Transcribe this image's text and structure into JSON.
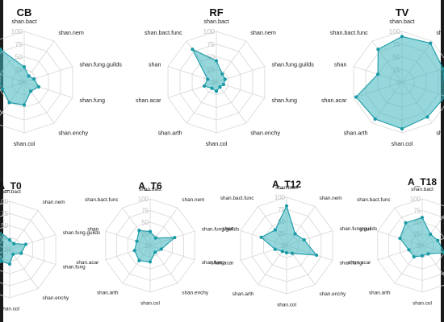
{
  "colors": {
    "fill": "#3fb6c0",
    "stroke": "#1a9aa6",
    "point": "#1a9aa6",
    "grid": "#d6d6d6"
  },
  "chart_data": [
    {
      "type": "radar",
      "title": "CB",
      "axes": [
        "shan.bact",
        "shan.nem",
        "shan.fung.guilds",
        "shan.fung",
        "shan.enchy",
        "shan.col",
        "shan.arth",
        "shan.acar",
        "shan",
        "shan.bact.func"
      ],
      "rlim": [
        0,
        100
      ],
      "ticks": [
        "0",
        "25",
        "50",
        "75",
        "100"
      ],
      "values": [
        30,
        15,
        20,
        30,
        22,
        45,
        50,
        45,
        60,
        80
      ]
    },
    {
      "type": "radar",
      "title": "RF",
      "axes": [
        "shan.bact",
        "shan.nem",
        "shan.fung.guilds",
        "shan.fung",
        "shan.enchy",
        "shan.col",
        "shan.arth",
        "shan.acar",
        "shan",
        "shan.bact.func"
      ],
      "rlim": [
        0,
        100
      ],
      "ticks": [
        "0",
        "25",
        "50",
        "75",
        "100"
      ],
      "values": [
        42,
        20,
        18,
        15,
        12,
        18,
        15,
        25,
        18,
        80
      ]
    },
    {
      "type": "radar",
      "title": "TV",
      "axes": [
        "shan.bact",
        "shan.nem",
        "shan.fung.guilds",
        "shan.fung",
        "shan.enchy",
        "shan.col",
        "shan.arth",
        "shan.acar",
        "shan",
        "shan.bact.func"
      ],
      "rlim": [
        0,
        100
      ],
      "ticks": [
        "0",
        "25",
        "50",
        "75",
        "100"
      ],
      "values": [
        90,
        95,
        85,
        90,
        85,
        92,
        90,
        95,
        50,
        80
      ]
    },
    {
      "type": "radar",
      "title": "A_T0",
      "axes": [
        "shan.bact",
        "shan.nem",
        "shan.fung.guilds",
        "shan.fung",
        "shan.enchy",
        "shan.col",
        "shan.arth",
        "shan.acar",
        "shan",
        "shan.bact.func"
      ],
      "rlim": [
        0,
        100
      ],
      "ticks": [
        "0",
        "25",
        "50",
        "75",
        "100"
      ],
      "values": [
        20,
        15,
        35,
        25,
        12,
        30,
        30,
        25,
        40,
        60
      ]
    },
    {
      "type": "radar",
      "title": "A_T6",
      "axes": [
        "shan.bact",
        "shan.nem",
        "shan.fung.guilds",
        "shan.fung",
        "shan.enchy",
        "shan.col",
        "shan.arth",
        "shan.acar",
        "shan",
        "shan.bact.func"
      ],
      "rlim": [
        0,
        100
      ],
      "ticks": [
        "0",
        "25",
        "50",
        "75",
        "100"
      ],
      "values": [
        30,
        20,
        55,
        25,
        18,
        35,
        40,
        35,
        30,
        40
      ]
    },
    {
      "type": "radar",
      "title": "A_T12",
      "axes": [
        "shan.bact",
        "shan.nem",
        "shan.fung.guilds",
        "shan.fung",
        "shan.enchy",
        "shan.col",
        "shan.arth",
        "shan.acar",
        "shan",
        "shan.bact.func"
      ],
      "rlim": [
        0,
        100
      ],
      "ticks": [
        "0",
        "25",
        "50",
        "75",
        "100"
      ],
      "values": [
        82,
        30,
        38,
        65,
        20,
        15,
        15,
        25,
        55,
        40
      ]
    },
    {
      "type": "radar",
      "title": "A_T18",
      "axes": [
        "shan.bact",
        "shan.nem",
        "shan.fung.guilds",
        "shan.fung",
        "shan.enchy",
        "shan.col",
        "shan.arth",
        "shan.acar",
        "shan",
        "shan.bact.func"
      ],
      "rlim": [
        0,
        100
      ],
      "ticks": [
        "0",
        "25",
        "50",
        "75",
        "100"
      ],
      "values": [
        60,
        30,
        35,
        50,
        22,
        22,
        30,
        30,
        50,
        60
      ]
    }
  ]
}
